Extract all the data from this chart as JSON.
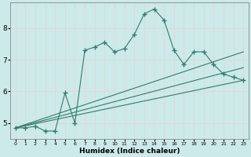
{
  "xlabel": "Humidex (Indice chaleur)",
  "bg_color": "#cceaea",
  "grid_color": "#e0d8d8",
  "line_color": "#2e7d6e",
  "xlim": [
    -0.5,
    23.5
  ],
  "ylim": [
    4.5,
    8.8
  ],
  "xticks": [
    0,
    1,
    2,
    3,
    4,
    5,
    6,
    7,
    8,
    9,
    10,
    11,
    12,
    13,
    14,
    15,
    16,
    17,
    18,
    19,
    20,
    21,
    22,
    23
  ],
  "yticks": [
    5,
    6,
    7,
    8
  ],
  "lines": [
    {
      "x": [
        0,
        1,
        2,
        3,
        4,
        5,
        6,
        7,
        8,
        9,
        10,
        11,
        12,
        13,
        14,
        15,
        16,
        17,
        18,
        19,
        20,
        21,
        22,
        23
      ],
      "y": [
        4.85,
        4.85,
        4.9,
        4.75,
        4.75,
        5.95,
        5.0,
        7.3,
        7.4,
        7.55,
        7.25,
        7.35,
        7.8,
        8.45,
        8.6,
        8.25,
        7.3,
        6.85,
        7.25,
        7.25,
        6.85,
        6.55,
        6.45,
        6.35
      ],
      "has_marker": true
    },
    {
      "x": [
        0,
        23
      ],
      "y": [
        4.85,
        6.35
      ],
      "has_marker": false
    },
    {
      "x": [
        0,
        23
      ],
      "y": [
        4.85,
        6.75
      ],
      "has_marker": false
    },
    {
      "x": [
        0,
        23
      ],
      "y": [
        4.85,
        7.25
      ],
      "has_marker": false
    }
  ]
}
